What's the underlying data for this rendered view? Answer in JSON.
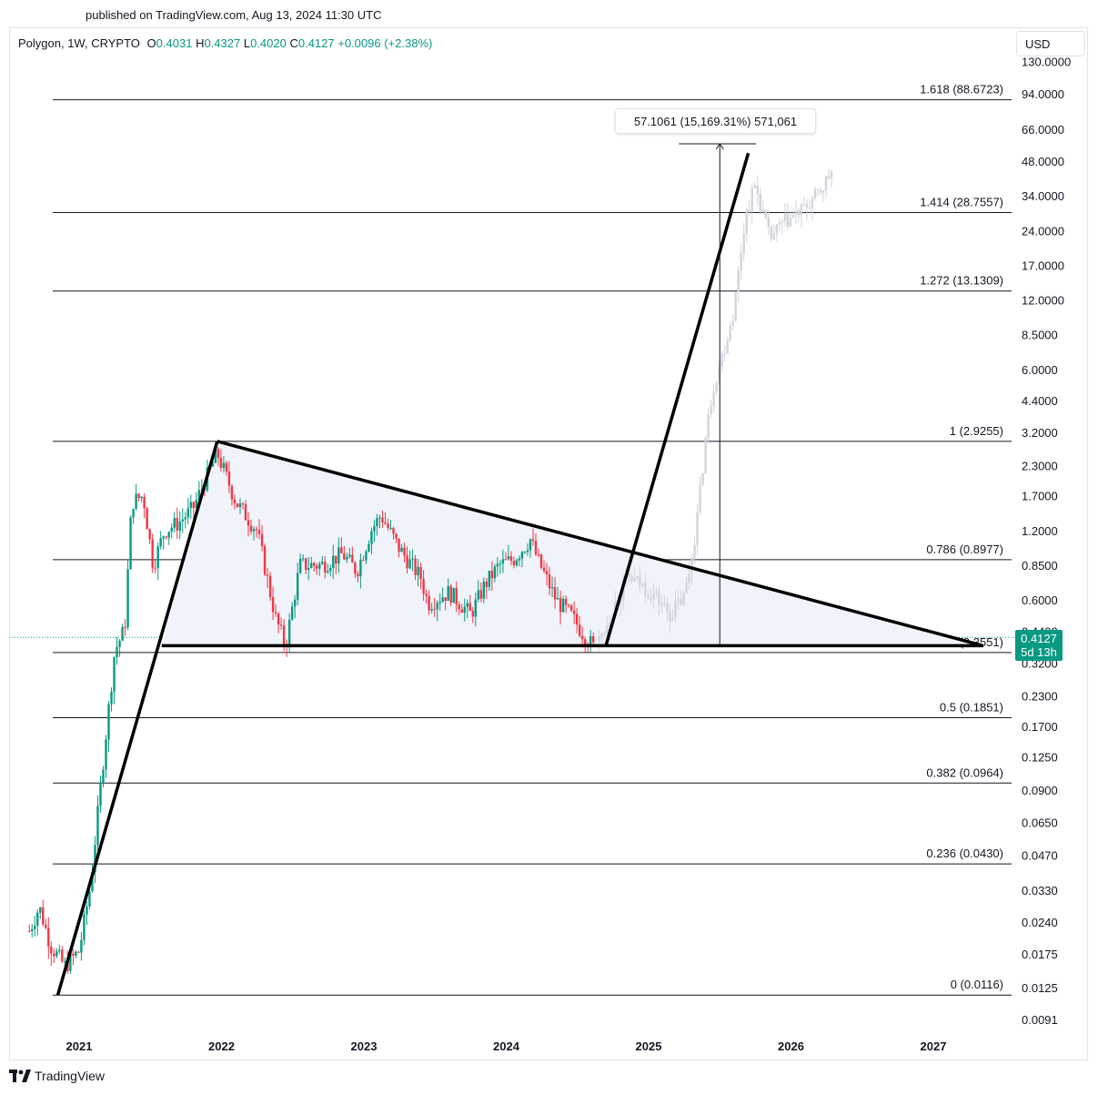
{
  "published": "published on TradingView.com, Aug 13, 2024 11:30 UTC",
  "legend": {
    "symbol": "Polygon, 1W, CRYPTO",
    "open_label": "O",
    "open": "0.4031",
    "high_label": "H",
    "high": "0.4327",
    "low_label": "L",
    "low": "0.4020",
    "close_label": "C",
    "close": "0.4127",
    "change": "+0.0096 (+2.38%)"
  },
  "currency_button": "USD",
  "last_price": {
    "price": "0.4127",
    "countdown": "5d 13h"
  },
  "measure_label": "57.1061 (15,169.31%) 571,061",
  "footer": {
    "brand": "TradingView"
  },
  "colors": {
    "up": "#089981",
    "down": "#f23645",
    "projection": "#d1d4dc",
    "triangle_fill": "#f0f3fa"
  },
  "chart_data": {
    "type": "candlestick",
    "y_scale": "log",
    "ylim": [
      0.0078,
      150
    ],
    "x_ticks": [
      "2021",
      "2022",
      "2023",
      "2024",
      "2025",
      "2026",
      "2027"
    ],
    "y_ticks": [
      "130.0000",
      "94.0000",
      "66.0000",
      "48.0000",
      "34.0000",
      "24.0000",
      "17.0000",
      "12.0000",
      "8.5000",
      "6.0000",
      "4.4000",
      "3.2000",
      "2.3000",
      "1.7000",
      "1.2000",
      "0.8500",
      "0.6000",
      "0.4400",
      "0.3200",
      "0.2300",
      "0.1700",
      "0.1250",
      "0.0900",
      "0.0650",
      "0.0470",
      "0.0330",
      "0.0240",
      "0.0175",
      "0.0125",
      "0.0091"
    ],
    "y_tick_values": [
      130,
      94,
      66,
      48,
      34,
      24,
      17,
      12,
      8.5,
      6,
      4.4,
      3.2,
      2.3,
      1.7,
      1.2,
      0.85,
      0.6,
      0.44,
      0.32,
      0.23,
      0.17,
      0.125,
      0.09,
      0.065,
      0.047,
      0.033,
      0.024,
      0.0175,
      0.0125,
      0.0091
    ],
    "fib_levels": [
      {
        "label": "1.618 (88.6723)",
        "value": 88.6723
      },
      {
        "label": "1.414 (28.7557)",
        "value": 28.7557
      },
      {
        "label": "1.272 (13.1309)",
        "value": 13.1309
      },
      {
        "label": "1 (2.9255)",
        "value": 2.9255
      },
      {
        "label": "0.786 (0.8977)",
        "value": 0.8977
      },
      {
        "label": "0.618 (0.3551)",
        "value": 0.3551
      },
      {
        "label": "0.5 (0.1851)",
        "value": 0.1851
      },
      {
        "label": "0.382 (0.0964)",
        "value": 0.0964
      },
      {
        "label": "0.236 (0.0430)",
        "value": 0.043
      },
      {
        "label": "0 (0.0116)",
        "value": 0.0116
      }
    ],
    "anchors": [
      {
        "date": 2020.85,
        "price": 0.0116
      },
      {
        "date": 2021.97,
        "price": 2.9255
      },
      {
        "date": 2021.58,
        "price": 0.38
      },
      {
        "date": 2027.35,
        "price": 0.38
      },
      {
        "date": 2024.7,
        "price": 0.38
      },
      {
        "date": 2025.7,
        "price": 52
      }
    ],
    "measure": {
      "date": 2025.5,
      "from": 0.38,
      "to": 57.1061
    },
    "price_keys_actual": [
      [
        2020.65,
        0.022
      ],
      [
        2020.72,
        0.028
      ],
      [
        2020.8,
        0.019
      ],
      [
        2020.9,
        0.0155
      ],
      [
        2021.0,
        0.018
      ],
      [
        2021.08,
        0.035
      ],
      [
        2021.18,
        0.14
      ],
      [
        2021.25,
        0.36
      ],
      [
        2021.32,
        0.45
      ],
      [
        2021.37,
        1.6
      ],
      [
        2021.45,
        1.7
      ],
      [
        2021.52,
        0.85
      ],
      [
        2021.6,
        1.2
      ],
      [
        2021.7,
        1.3
      ],
      [
        2021.8,
        1.5
      ],
      [
        2021.97,
        2.6
      ],
      [
        2022.1,
        1.6
      ],
      [
        2022.25,
        1.2
      ],
      [
        2022.38,
        0.5
      ],
      [
        2022.45,
        0.38
      ],
      [
        2022.55,
        0.85
      ],
      [
        2022.7,
        0.85
      ],
      [
        2022.85,
        0.95
      ],
      [
        2022.95,
        0.8
      ],
      [
        2023.05,
        1.2
      ],
      [
        2023.12,
        1.4
      ],
      [
        2023.25,
        1.0
      ],
      [
        2023.4,
        0.75
      ],
      [
        2023.45,
        0.58
      ],
      [
        2023.6,
        0.65
      ],
      [
        2023.75,
        0.52
      ],
      [
        2023.85,
        0.7
      ],
      [
        2023.95,
        0.85
      ],
      [
        2024.05,
        0.9
      ],
      [
        2024.17,
        1.1
      ],
      [
        2024.22,
        0.9
      ],
      [
        2024.35,
        0.6
      ],
      [
        2024.45,
        0.52
      ],
      [
        2024.55,
        0.42
      ],
      [
        2024.62,
        0.37
      ]
    ],
    "price_keys_projection": [
      [
        2024.65,
        0.4
      ],
      [
        2024.75,
        0.55
      ],
      [
        2024.85,
        0.75
      ],
      [
        2024.95,
        0.7
      ],
      [
        2025.05,
        0.62
      ],
      [
        2025.15,
        0.52
      ],
      [
        2025.25,
        0.62
      ],
      [
        2025.3,
        0.9
      ],
      [
        2025.35,
        1.5
      ],
      [
        2025.4,
        3.0
      ],
      [
        2025.45,
        5.0
      ],
      [
        2025.52,
        7.0
      ],
      [
        2025.6,
        11.0
      ],
      [
        2025.68,
        28.0
      ],
      [
        2025.75,
        38.0
      ],
      [
        2025.85,
        22.0
      ],
      [
        2025.95,
        26.0
      ],
      [
        2026.1,
        30.0
      ],
      [
        2026.2,
        35.0
      ],
      [
        2026.3,
        45.0
      ]
    ]
  }
}
